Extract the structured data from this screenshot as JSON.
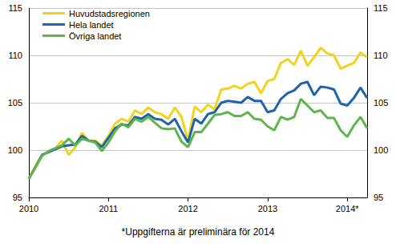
{
  "chart_data": {
    "type": "line",
    "annotations": [
      "*Uppgifterna är preliminära för 2014"
    ],
    "categories": [
      "2010",
      null,
      null,
      null,
      null,
      null,
      null,
      null,
      null,
      null,
      null,
      null,
      "2011",
      null,
      null,
      null,
      null,
      null,
      null,
      null,
      null,
      null,
      null,
      null,
      "2012",
      null,
      null,
      null,
      null,
      null,
      null,
      null,
      null,
      null,
      null,
      null,
      "2013",
      null,
      null,
      null,
      null,
      null,
      null,
      null,
      null,
      null,
      null,
      null,
      "2014*",
      null,
      null,
      null
    ],
    "series": [
      {
        "name": "Huvudstadsregionen",
        "color": "#f2d21e",
        "values": [
          97.0,
          98.3,
          99.5,
          99.8,
          100.2,
          101.0,
          99.5,
          100.3,
          101.8,
          101.0,
          101.0,
          100.5,
          101.5,
          102.8,
          103.3,
          103.0,
          104.2,
          103.8,
          104.5,
          104.0,
          103.8,
          103.3,
          104.5,
          103.5,
          101.0,
          104.6,
          104.0,
          104.8,
          104.3,
          106.4,
          106.5,
          106.8,
          106.5,
          107.0,
          107.2,
          106.0,
          107.3,
          107.5,
          109.2,
          109.6,
          109.0,
          110.5,
          108.9,
          109.8,
          110.8,
          110.2,
          110.0,
          108.6,
          108.9,
          109.2,
          110.3,
          109.8
        ]
      },
      {
        "name": "Hela landet",
        "color": "#1f63a8",
        "values": [
          97.0,
          98.2,
          99.5,
          99.8,
          100.1,
          100.4,
          100.5,
          100.6,
          101.5,
          101.0,
          100.9,
          100.3,
          101.3,
          102.3,
          102.7,
          102.6,
          103.5,
          103.3,
          103.8,
          103.3,
          103.2,
          102.7,
          103.3,
          102.0,
          100.8,
          103.3,
          102.8,
          103.8,
          104.0,
          105.0,
          105.2,
          105.1,
          105.0,
          105.6,
          105.2,
          105.2,
          104.0,
          104.2,
          105.4,
          106.0,
          106.3,
          107.0,
          107.2,
          105.8,
          106.7,
          106.6,
          106.4,
          104.9,
          104.7,
          105.5,
          106.6,
          105.5
        ]
      },
      {
        "name": "Övriga landet",
        "color": "#5cb64a",
        "values": [
          97.0,
          98.2,
          99.4,
          99.9,
          100.2,
          100.5,
          101.2,
          100.5,
          101.2,
          101.0,
          100.8,
          99.9,
          100.8,
          102.0,
          102.8,
          102.4,
          103.3,
          103.0,
          103.5,
          102.9,
          102.3,
          102.2,
          102.3,
          100.9,
          100.3,
          101.9,
          101.9,
          102.8,
          103.7,
          103.8,
          104.0,
          103.6,
          103.6,
          104.0,
          103.3,
          103.2,
          102.5,
          102.1,
          103.5,
          103.2,
          103.5,
          105.4,
          104.7,
          104.0,
          104.2,
          103.4,
          103.4,
          102.1,
          101.4,
          102.6,
          103.5,
          102.3
        ]
      }
    ],
    "ylim": [
      95,
      115
    ],
    "yticks": [
      95,
      100,
      105,
      110,
      115
    ],
    "y2lim": [
      95,
      115
    ],
    "y2ticks": [
      95,
      100,
      105,
      110,
      115
    ],
    "grid": true,
    "legend": "top-left"
  }
}
